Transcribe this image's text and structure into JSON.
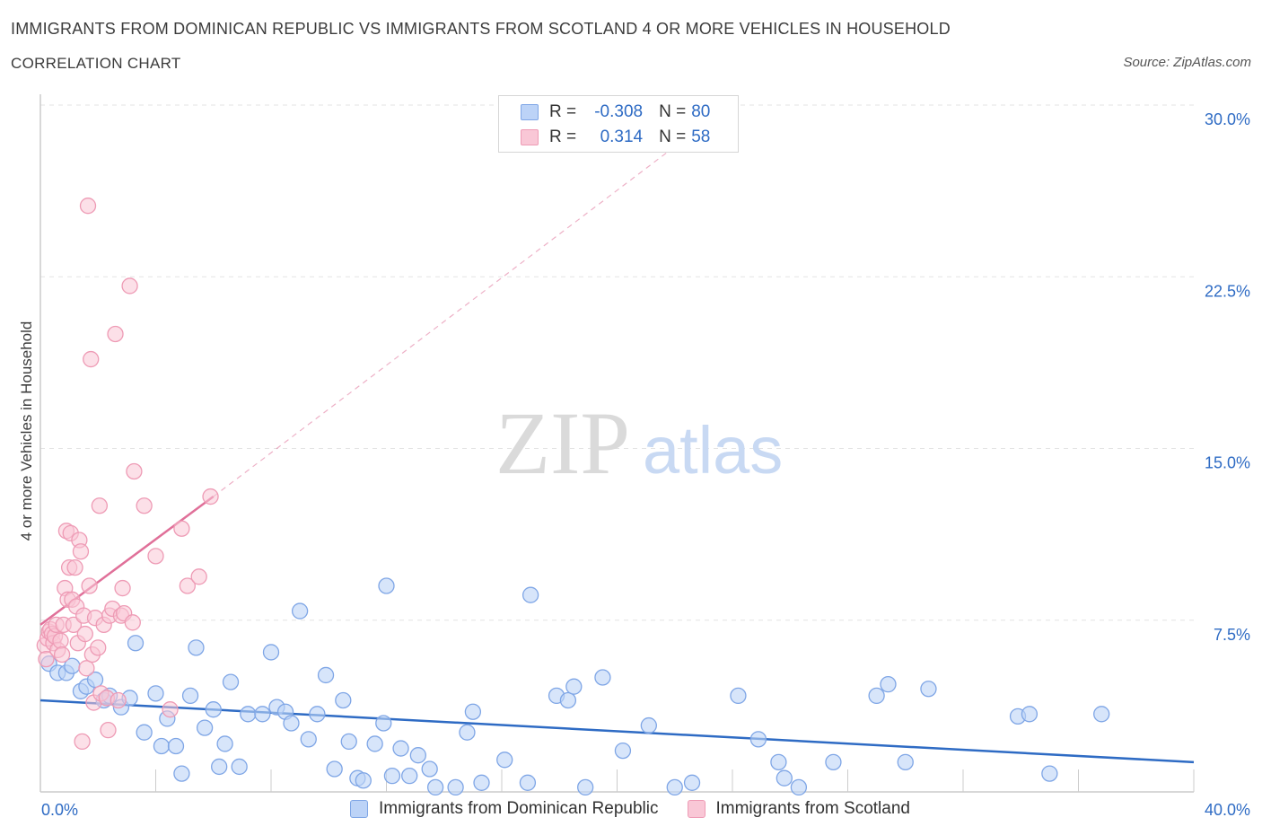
{
  "header": {
    "title": "IMMIGRANTS FROM DOMINICAN REPUBLIC VS IMMIGRANTS FROM SCOTLAND 4 OR MORE VEHICLES IN HOUSEHOLD",
    "subtitle": "CORRELATION CHART",
    "source": "Source: ZipAtlas.com"
  },
  "watermark": {
    "zip": "ZIP",
    "atlas": "atlas"
  },
  "legend_top": {
    "row1": {
      "r_label": "R =",
      "r_value": "-0.308",
      "n_label": "N =",
      "n_value": "80"
    },
    "row2": {
      "r_label": "R =",
      "r_value": "0.314",
      "n_label": "N =",
      "n_value": "58"
    }
  },
  "colors": {
    "blue_fill": "#bcd3f7",
    "blue_stroke": "#7fa6e6",
    "blue_line": "#2e6bc4",
    "pink_fill": "#f9c7d6",
    "pink_stroke": "#ee9bb5",
    "pink_line": "#e07099",
    "grid": "#e3e3e3",
    "axis": "#cccccc"
  },
  "chart_data": {
    "type": "scatter",
    "title": "IMMIGRANTS FROM DOMINICAN REPUBLIC VS IMMIGRANTS FROM SCOTLAND 4 OR MORE VEHICLES IN HOUSEHOLD",
    "xlabel": "",
    "ylabel": "4 or more Vehicles in Household",
    "xlim": [
      0,
      40
    ],
    "ylim": [
      0,
      30
    ],
    "x_tick_labels": [
      {
        "value": 0,
        "label": "0.0%"
      },
      {
        "value": 40,
        "label": "40.0%"
      }
    ],
    "y_tick_labels": [
      {
        "value": 7.5,
        "label": "7.5%"
      },
      {
        "value": 15,
        "label": "15.0%"
      },
      {
        "value": 22.5,
        "label": "22.5%"
      },
      {
        "value": 30,
        "label": "30.0%"
      }
    ],
    "legend_position": "bottom",
    "series": [
      {
        "name": "Immigrants from Dominican Republic",
        "color": "blue",
        "R": -0.308,
        "N": 80,
        "trend": {
          "x0": 0,
          "y0": 4.0,
          "x1": 40,
          "y1": 1.3
        },
        "points": [
          [
            0.3,
            5.6
          ],
          [
            0.6,
            5.2
          ],
          [
            0.9,
            5.2
          ],
          [
            1.1,
            5.5
          ],
          [
            1.4,
            4.4
          ],
          [
            1.6,
            4.6
          ],
          [
            1.9,
            4.9
          ],
          [
            2.2,
            4.0
          ],
          [
            2.4,
            4.2
          ],
          [
            2.8,
            3.7
          ],
          [
            3.1,
            4.1
          ],
          [
            3.3,
            6.5
          ],
          [
            3.6,
            2.6
          ],
          [
            4.0,
            4.3
          ],
          [
            4.2,
            2.0
          ],
          [
            4.4,
            3.2
          ],
          [
            4.7,
            2.0
          ],
          [
            4.9,
            0.8
          ],
          [
            5.2,
            4.2
          ],
          [
            5.4,
            6.3
          ],
          [
            5.7,
            2.8
          ],
          [
            6.0,
            3.6
          ],
          [
            6.2,
            1.1
          ],
          [
            6.4,
            2.1
          ],
          [
            6.6,
            4.8
          ],
          [
            6.9,
            1.1
          ],
          [
            7.2,
            3.4
          ],
          [
            7.7,
            3.4
          ],
          [
            8.0,
            6.1
          ],
          [
            8.2,
            3.7
          ],
          [
            8.5,
            3.5
          ],
          [
            8.7,
            3.0
          ],
          [
            9.0,
            7.9
          ],
          [
            9.3,
            2.3
          ],
          [
            9.6,
            3.4
          ],
          [
            9.9,
            5.1
          ],
          [
            10.2,
            1.0
          ],
          [
            10.5,
            4.0
          ],
          [
            10.7,
            2.2
          ],
          [
            11.0,
            0.6
          ],
          [
            11.2,
            0.5
          ],
          [
            11.6,
            2.1
          ],
          [
            11.9,
            3.0
          ],
          [
            12.0,
            9.0
          ],
          [
            12.2,
            0.7
          ],
          [
            12.5,
            1.9
          ],
          [
            12.8,
            0.7
          ],
          [
            13.1,
            1.6
          ],
          [
            13.5,
            1.0
          ],
          [
            13.7,
            0.2
          ],
          [
            14.4,
            0.2
          ],
          [
            14.8,
            2.6
          ],
          [
            15.0,
            3.5
          ],
          [
            15.3,
            0.4
          ],
          [
            16.1,
            1.4
          ],
          [
            16.9,
            0.4
          ],
          [
            17.0,
            8.6
          ],
          [
            17.9,
            4.2
          ],
          [
            18.3,
            4.0
          ],
          [
            18.9,
            0.2
          ],
          [
            18.5,
            4.6
          ],
          [
            19.5,
            5.0
          ],
          [
            20.2,
            1.8
          ],
          [
            21.1,
            2.9
          ],
          [
            22.0,
            0.2
          ],
          [
            22.6,
            0.4
          ],
          [
            24.2,
            4.2
          ],
          [
            24.9,
            2.3
          ],
          [
            25.6,
            1.3
          ],
          [
            25.8,
            0.6
          ],
          [
            26.3,
            0.2
          ],
          [
            27.5,
            1.3
          ],
          [
            29.0,
            4.2
          ],
          [
            29.4,
            4.7
          ],
          [
            30.0,
            1.3
          ],
          [
            30.8,
            4.5
          ],
          [
            33.9,
            3.3
          ],
          [
            34.3,
            3.4
          ],
          [
            35.0,
            0.8
          ],
          [
            36.8,
            3.4
          ]
        ]
      },
      {
        "name": "Immigrants from Scotland",
        "color": "pink",
        "R": 0.314,
        "N": 58,
        "trend": {
          "x0": 0,
          "y0": 7.3,
          "x1": 6.0,
          "y1": 12.9
        },
        "trend_extension": {
          "x0": 6.0,
          "y0": 12.9,
          "x1": 21.7,
          "y1": 27.9
        },
        "points": [
          [
            0.15,
            6.4
          ],
          [
            0.2,
            5.8
          ],
          [
            0.25,
            6.7
          ],
          [
            0.3,
            7.0
          ],
          [
            0.35,
            7.1
          ],
          [
            0.4,
            6.9
          ],
          [
            0.45,
            6.5
          ],
          [
            0.5,
            6.8
          ],
          [
            0.55,
            7.3
          ],
          [
            0.6,
            6.2
          ],
          [
            0.7,
            6.6
          ],
          [
            0.75,
            6.0
          ],
          [
            0.8,
            7.3
          ],
          [
            0.85,
            8.9
          ],
          [
            0.9,
            11.4
          ],
          [
            0.95,
            8.4
          ],
          [
            1.0,
            9.8
          ],
          [
            1.05,
            11.3
          ],
          [
            1.1,
            8.4
          ],
          [
            1.15,
            7.3
          ],
          [
            1.2,
            9.8
          ],
          [
            1.25,
            8.1
          ],
          [
            1.3,
            6.5
          ],
          [
            1.35,
            11.0
          ],
          [
            1.4,
            10.5
          ],
          [
            1.45,
            2.2
          ],
          [
            1.5,
            7.7
          ],
          [
            1.55,
            6.9
          ],
          [
            1.6,
            5.4
          ],
          [
            1.65,
            25.6
          ],
          [
            1.7,
            9.0
          ],
          [
            1.75,
            18.9
          ],
          [
            1.8,
            6.0
          ],
          [
            1.85,
            3.9
          ],
          [
            1.9,
            7.6
          ],
          [
            2.0,
            6.3
          ],
          [
            2.05,
            12.5
          ],
          [
            2.1,
            4.3
          ],
          [
            2.2,
            7.3
          ],
          [
            2.3,
            4.1
          ],
          [
            2.35,
            2.7
          ],
          [
            2.4,
            7.7
          ],
          [
            2.5,
            8.0
          ],
          [
            2.6,
            20.0
          ],
          [
            2.7,
            4.0
          ],
          [
            2.8,
            7.7
          ],
          [
            2.85,
            8.9
          ],
          [
            2.9,
            7.8
          ],
          [
            3.1,
            22.1
          ],
          [
            3.2,
            7.4
          ],
          [
            3.25,
            14.0
          ],
          [
            3.6,
            12.5
          ],
          [
            4.0,
            10.3
          ],
          [
            4.5,
            3.6
          ],
          [
            4.9,
            11.5
          ],
          [
            5.1,
            9.0
          ],
          [
            5.5,
            9.4
          ],
          [
            5.9,
            12.9
          ]
        ]
      }
    ]
  },
  "legend_bottom": [
    {
      "label": "Immigrants from Dominican Republic"
    },
    {
      "label": "Immigrants from Scotland"
    }
  ]
}
